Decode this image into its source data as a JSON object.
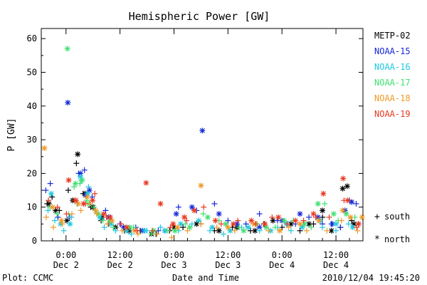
{
  "chart_data": {
    "type": "scatter",
    "title": "Hemispheric Power [GW]",
    "ylabel": "P [GW]",
    "xlabel": "Date and Time",
    "ylim": [
      0,
      63
    ],
    "xlim": [
      -5.5,
      66
    ],
    "x_units": "hours since 2010-12-02 00:00 UT",
    "yticks": [
      0,
      10,
      20,
      30,
      40,
      50,
      60
    ],
    "xticks": [
      {
        "value": 0,
        "time": "0:00",
        "date": "Dec 2"
      },
      {
        "value": 12,
        "time": "12:00",
        "date": "Dec 2"
      },
      {
        "value": 24,
        "time": "0:00",
        "date": "Dec 3"
      },
      {
        "value": 36,
        "time": "12:00",
        "date": "Dec 3"
      },
      {
        "value": 48,
        "time": "0:00",
        "date": "Dec 4"
      },
      {
        "value": 60,
        "time": "12:00",
        "date": "Dec 4"
      }
    ],
    "grid": false,
    "legend_position": "right",
    "marker_legend": [
      {
        "symbol": "+",
        "label": "south"
      },
      {
        "symbol": "*",
        "label": "north"
      }
    ],
    "series": [
      {
        "name": "METP-02",
        "color": "#000000",
        "south": [
          [
            -4.2,
            11
          ],
          [
            -3.1,
            13
          ],
          [
            -1.5,
            9
          ],
          [
            0.5,
            15
          ],
          [
            2.3,
            23
          ],
          [
            3.8,
            14
          ],
          [
            5.5,
            10
          ],
          [
            7.8,
            6
          ],
          [
            9.5,
            5
          ],
          [
            13,
            3
          ],
          [
            16.5,
            3
          ],
          [
            20,
            2
          ],
          [
            23,
            3
          ],
          [
            26,
            4
          ],
          [
            30,
            5
          ],
          [
            33,
            3
          ],
          [
            37,
            4
          ],
          [
            41,
            3
          ],
          [
            44,
            5
          ],
          [
            48,
            4
          ],
          [
            52,
            3
          ],
          [
            55,
            5
          ],
          [
            57,
            7
          ],
          [
            61,
            4
          ],
          [
            63.5,
            6
          ],
          [
            65,
            5
          ]
        ],
        "north": [
          [
            -3.8,
            11
          ],
          [
            -2.3,
            9
          ],
          [
            0.2,
            6
          ],
          [
            1.5,
            12
          ],
          [
            2.6,
            25.7
          ],
          [
            4.2,
            14
          ],
          [
            6,
            10
          ],
          [
            8,
            7
          ],
          [
            11,
            4
          ],
          [
            14,
            3
          ],
          [
            19,
            2
          ],
          [
            24,
            4
          ],
          [
            29,
            5
          ],
          [
            34,
            3
          ],
          [
            38,
            4
          ],
          [
            42,
            3
          ],
          [
            46,
            6
          ],
          [
            50,
            5
          ],
          [
            54,
            5
          ],
          [
            57,
            9
          ],
          [
            59,
            3
          ],
          [
            61.5,
            15.5
          ],
          [
            62.5,
            16.2
          ],
          [
            64,
            5
          ]
        ]
      },
      {
        "name": "NOAA-15",
        "color": "#1428d8",
        "south": [
          [
            -4.5,
            15
          ],
          [
            -3.5,
            17
          ],
          [
            -1.8,
            7
          ],
          [
            0.8,
            7
          ],
          [
            2.8,
            20
          ],
          [
            4.1,
            21
          ],
          [
            5.8,
            13
          ],
          [
            8.8,
            9
          ],
          [
            12,
            5
          ],
          [
            15.5,
            4
          ],
          [
            20.5,
            3
          ],
          [
            25,
            10
          ],
          [
            29,
            9
          ],
          [
            33,
            11
          ],
          [
            36,
            6
          ],
          [
            40,
            5
          ],
          [
            43,
            8
          ],
          [
            47,
            6
          ],
          [
            51,
            5
          ],
          [
            54,
            7
          ],
          [
            57,
            5
          ],
          [
            59,
            5
          ],
          [
            61,
            4
          ],
          [
            63,
            12
          ],
          [
            64.5,
            11
          ]
        ],
        "north": [
          [
            0.4,
            41
          ],
          [
            3.2,
            20
          ],
          [
            4.4,
            13.5
          ],
          [
            5.2,
            15
          ],
          [
            9.5,
            7
          ],
          [
            12.8,
            4
          ],
          [
            17,
            3
          ],
          [
            22,
            3
          ],
          [
            24.5,
            8
          ],
          [
            28,
            10
          ],
          [
            30.3,
            32.7
          ],
          [
            34,
            8
          ],
          [
            38,
            5
          ],
          [
            43,
            4
          ],
          [
            48,
            6
          ],
          [
            52,
            8
          ],
          [
            56,
            7
          ],
          [
            59.2,
            5
          ],
          [
            62,
            9
          ],
          [
            63.5,
            11.5
          ]
        ]
      },
      {
        "name": "NOAA-16",
        "color": "#1ec8e0",
        "south": [
          [
            -4,
            9
          ],
          [
            -2.5,
            6
          ],
          [
            -0.5,
            3
          ],
          [
            1.2,
            7
          ],
          [
            2.5,
            11
          ],
          [
            3.4,
            18
          ],
          [
            5,
            16
          ],
          [
            6.5,
            9
          ],
          [
            8.5,
            4
          ],
          [
            11,
            3
          ],
          [
            14.5,
            2
          ],
          [
            18,
            3
          ],
          [
            21,
            4
          ],
          [
            25,
            3
          ],
          [
            28,
            5
          ],
          [
            32,
            3
          ],
          [
            35,
            2
          ],
          [
            39,
            4
          ],
          [
            43,
            3
          ],
          [
            47,
            4
          ],
          [
            50,
            3
          ],
          [
            53,
            5
          ],
          [
            57,
            4
          ],
          [
            60,
            3
          ],
          [
            62.8,
            5
          ]
        ],
        "north": [
          [
            -3.3,
            14
          ],
          [
            -1.2,
            5
          ],
          [
            0.9,
            5
          ],
          [
            3.2,
            19
          ],
          [
            4.8,
            14
          ],
          [
            7.5,
            7
          ],
          [
            10,
            5
          ],
          [
            13.5,
            3
          ],
          [
            17.5,
            3
          ],
          [
            22,
            3
          ],
          [
            25.5,
            5
          ],
          [
            29.5,
            6
          ],
          [
            32.5,
            4
          ],
          [
            36.5,
            3
          ],
          [
            40.5,
            4
          ],
          [
            45.5,
            3
          ],
          [
            49,
            5
          ],
          [
            52.5,
            4
          ],
          [
            56.5,
            6
          ],
          [
            60,
            5
          ],
          [
            63.7,
            4
          ]
        ]
      },
      {
        "name": "NOAA-17",
        "color": "#40e070",
        "south": [
          [
            -3.6,
            10
          ],
          [
            -2,
            8
          ],
          [
            0.6,
            8
          ],
          [
            1.8,
            16
          ],
          [
            3.1,
            17
          ],
          [
            4.6,
            12
          ],
          [
            6.2,
            10
          ],
          [
            8.2,
            6
          ],
          [
            10.5,
            4
          ],
          [
            15,
            4
          ],
          [
            19,
            2
          ],
          [
            22.5,
            3
          ],
          [
            26.5,
            5
          ],
          [
            30.5,
            8
          ],
          [
            34,
            6
          ],
          [
            38.5,
            4
          ],
          [
            42.5,
            5
          ],
          [
            46.5,
            4
          ],
          [
            50.5,
            6
          ],
          [
            54.5,
            4
          ],
          [
            57.5,
            11
          ],
          [
            60.5,
            6
          ],
          [
            64.2,
            7
          ]
        ],
        "north": [
          [
            0.3,
            57
          ],
          [
            2.1,
            17
          ],
          [
            3.6,
            18
          ],
          [
            5.1,
            11
          ],
          [
            7.2,
            8
          ],
          [
            9.8,
            6
          ],
          [
            14.2,
            4
          ],
          [
            19.5,
            3
          ],
          [
            24.2,
            3
          ],
          [
            27.5,
            4
          ],
          [
            31.5,
            7
          ],
          [
            35.5,
            5
          ],
          [
            39.5,
            3
          ],
          [
            44.5,
            4
          ],
          [
            48.5,
            6
          ],
          [
            53,
            5
          ],
          [
            56,
            11
          ],
          [
            59.5,
            8
          ],
          [
            62.3,
            8
          ]
        ]
      },
      {
        "name": "NOAA-18",
        "color": "#f09a28",
        "south": [
          [
            -4.4,
            7
          ],
          [
            -2.8,
            4
          ],
          [
            -0.8,
            5
          ],
          [
            1.3,
            8
          ],
          [
            3.3,
            9
          ],
          [
            5.3,
            11
          ],
          [
            6.8,
            8
          ],
          [
            9.2,
            5
          ],
          [
            12.5,
            3
          ],
          [
            16,
            2
          ],
          [
            20.2,
            2
          ],
          [
            23.5,
            1
          ],
          [
            27,
            3
          ],
          [
            30,
            5
          ],
          [
            33.5,
            4
          ],
          [
            37.5,
            3
          ],
          [
            41.5,
            5
          ],
          [
            45,
            3
          ],
          [
            49.5,
            4
          ],
          [
            53.5,
            3
          ],
          [
            58,
            3
          ],
          [
            61.2,
            6
          ],
          [
            64.8,
            3
          ]
        ],
        "north": [
          [
            -4.8,
            27.5
          ],
          [
            -3,
            10
          ],
          [
            -1,
            6
          ],
          [
            2.7,
            11
          ],
          [
            4.7,
            13
          ],
          [
            6.6,
            9
          ],
          [
            10.2,
            6
          ],
          [
            15.2,
            3
          ],
          [
            24.8,
            4
          ],
          [
            30,
            16.4
          ],
          [
            36,
            4
          ],
          [
            42,
            5
          ],
          [
            47.5,
            3
          ],
          [
            52,
            5
          ],
          [
            56.2,
            6
          ],
          [
            61.5,
            9
          ],
          [
            63.2,
            7
          ],
          [
            65.8,
            7
          ]
        ]
      },
      {
        "name": "NOAA-19",
        "color": "#e83820",
        "south": [
          [
            -3.9,
            12
          ],
          [
            -1.9,
            10
          ],
          [
            0.1,
            8
          ],
          [
            1.9,
            12
          ],
          [
            4.3,
            11
          ],
          [
            6.4,
            14
          ],
          [
            9,
            7
          ],
          [
            12.2,
            5
          ],
          [
            15.8,
            3
          ],
          [
            19.2,
            3
          ],
          [
            23.2,
            4
          ],
          [
            26.8,
            6
          ],
          [
            30.6,
            10
          ],
          [
            34.5,
            5
          ],
          [
            38.2,
            6
          ],
          [
            42.2,
            5
          ],
          [
            45.8,
            7
          ],
          [
            49.2,
            5
          ],
          [
            52.8,
            6
          ],
          [
            55.5,
            7
          ],
          [
            58.5,
            7
          ],
          [
            61.8,
            12
          ],
          [
            64.6,
            4
          ]
        ],
        "north": [
          [
            0.6,
            18
          ],
          [
            2.2,
            12
          ],
          [
            3.9,
            11
          ],
          [
            5.9,
            12
          ],
          [
            8.4,
            8
          ],
          [
            9.8,
            7
          ],
          [
            13.5,
            4
          ],
          [
            17.8,
            17.2
          ],
          [
            21,
            11
          ],
          [
            23.8,
            5
          ],
          [
            26.3,
            7
          ],
          [
            28.5,
            9
          ],
          [
            33.2,
            6
          ],
          [
            37.2,
            5
          ],
          [
            41.2,
            6
          ],
          [
            44.2,
            5
          ],
          [
            47.2,
            7
          ],
          [
            51,
            6
          ],
          [
            55,
            8
          ],
          [
            57.2,
            14
          ],
          [
            61.6,
            18.5
          ],
          [
            62.6,
            12
          ],
          [
            65,
            5
          ]
        ]
      }
    ]
  },
  "footer": {
    "plot_label": "Plot: CCMC",
    "timestamp": "2010/12/04 19:45:20"
  }
}
